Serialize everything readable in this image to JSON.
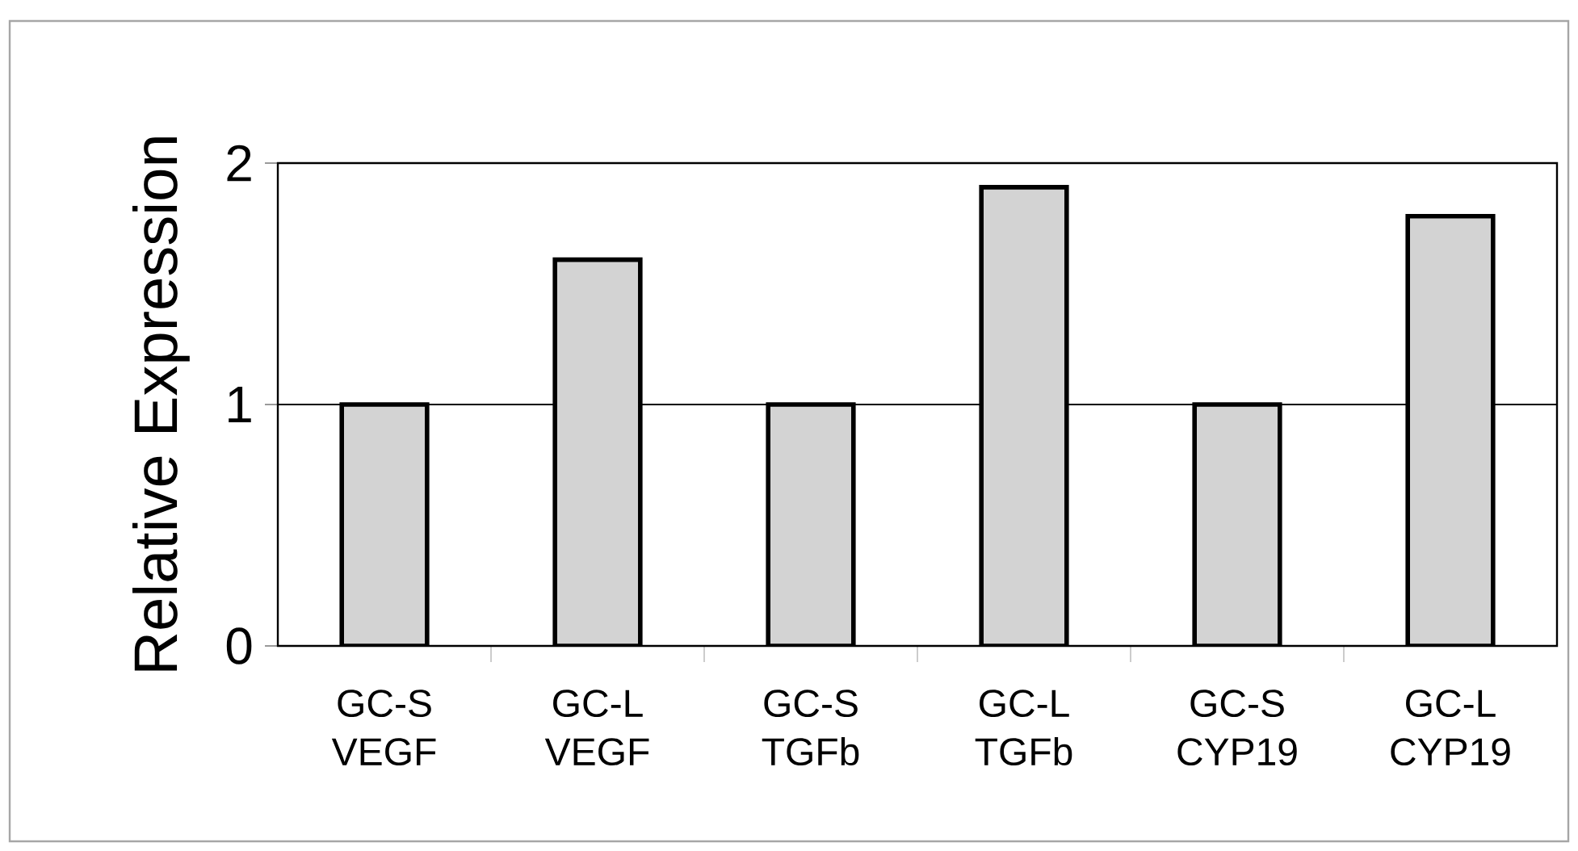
{
  "chart_data": {
    "type": "bar",
    "ylabel": "Relative Expression",
    "categories": [
      "GC-S VEGF",
      "GC-L VEGF",
      "GC-S TGFb",
      "GC-L TGFb",
      "GC-S CYP19",
      "GC-L CYP19"
    ],
    "values": [
      1,
      1.6,
      1,
      1.9,
      1,
      1.78
    ],
    "color": "#d3d3d3",
    "ylim": [
      0,
      2
    ],
    "yticks": [
      0,
      1,
      2
    ],
    "grid": "y"
  }
}
